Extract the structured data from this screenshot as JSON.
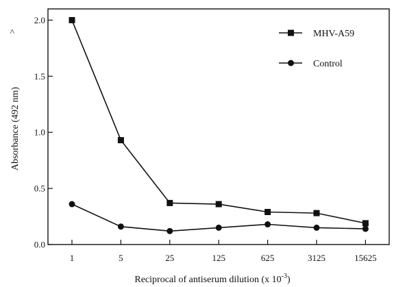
{
  "chart_data": {
    "type": "line",
    "x_scale": "log5",
    "categories": [
      "1",
      "5",
      "25",
      "125",
      "625",
      "3125",
      "15625"
    ],
    "xlabel": "Reciprocal of antiserum dilution (x 10",
    "xlabel_exponent": "-3",
    "xlabel_suffix": ")",
    "ylabel": "Absorbance (492 nm)",
    "y_axis_marker": ">",
    "ylim": [
      0,
      2.1
    ],
    "yticks": [
      "0.0",
      "0.5",
      "1.0",
      "1.5",
      "2.0"
    ],
    "grid": false,
    "legend_position": "top-right",
    "series": [
      {
        "name": "MHV-A59",
        "marker": "square",
        "values": [
          2.0,
          0.93,
          0.37,
          0.36,
          0.29,
          0.28,
          0.19
        ]
      },
      {
        "name": "Control",
        "marker": "circle",
        "values": [
          0.36,
          0.16,
          0.12,
          0.15,
          0.18,
          0.15,
          0.14
        ]
      }
    ],
    "colors": {
      "line": "#111111",
      "marker": "#111111"
    }
  }
}
